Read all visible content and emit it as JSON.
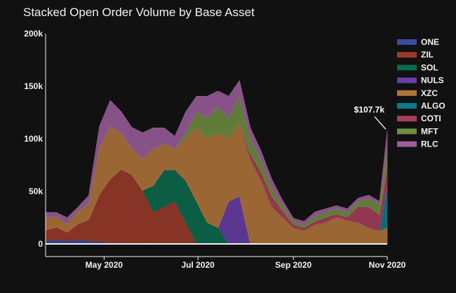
{
  "chart_data": {
    "type": "area",
    "stacked": true,
    "title": "Stacked Open Order Volume by Base Asset",
    "xlabel": "",
    "ylabel": "",
    "x_axis": {
      "type": "date",
      "range": [
        "2020-03-24",
        "2020-11-01"
      ],
      "tick_values": [
        "2020-05-01",
        "2020-07-01",
        "2020-09-01",
        "2020-11-01"
      ],
      "tick_labels": [
        "May 2020",
        "Jul 2020",
        "Sep 2020",
        "Nov 2020"
      ]
    },
    "y_axis": {
      "range": [
        -12000,
        200000
      ],
      "tick_values": [
        0,
        50000,
        100000,
        150000,
        200000
      ],
      "tick_labels": [
        "0",
        "50k",
        "100k",
        "150k",
        "200k"
      ]
    },
    "grid": false,
    "legend_position": "right",
    "x": [
      "2020-03-24",
      "2020-03-31",
      "2020-04-07",
      "2020-04-14",
      "2020-04-21",
      "2020-04-28",
      "2020-05-05",
      "2020-05-12",
      "2020-05-19",
      "2020-05-26",
      "2020-06-02",
      "2020-06-09",
      "2020-06-16",
      "2020-06-23",
      "2020-06-30",
      "2020-07-07",
      "2020-07-14",
      "2020-07-21",
      "2020-07-28",
      "2020-08-04",
      "2020-08-11",
      "2020-08-18",
      "2020-08-25",
      "2020-09-01",
      "2020-09-08",
      "2020-09-15",
      "2020-09-22",
      "2020-09-29",
      "2020-10-06",
      "2020-10-13",
      "2020-10-20",
      "2020-10-27",
      "2020-11-01"
    ],
    "series": [
      {
        "name": "ONE",
        "color": "#3b4c9c",
        "values": [
          3000,
          4000,
          3000,
          4000,
          3000,
          2000,
          1500,
          1000,
          1000,
          800,
          500,
          500,
          500,
          500,
          500,
          500,
          500,
          500,
          500,
          500,
          500,
          500,
          500,
          500,
          500,
          500,
          500,
          500,
          500,
          500,
          500,
          500,
          500
        ]
      },
      {
        "name": "ZIL",
        "color": "#9c3b2a",
        "values": [
          10000,
          12000,
          8000,
          15000,
          20000,
          45000,
          60000,
          70000,
          65000,
          50000,
          30000,
          35000,
          40000,
          20000,
          0,
          0,
          0,
          0,
          0,
          0,
          0,
          0,
          0,
          0,
          0,
          0,
          0,
          0,
          0,
          0,
          0,
          0,
          0
        ]
      },
      {
        "name": "SOL",
        "color": "#0a6b4d",
        "values": [
          0,
          0,
          0,
          0,
          0,
          0,
          0,
          0,
          0,
          0,
          25000,
          35000,
          30000,
          40000,
          40000,
          20000,
          15000,
          0,
          0,
          0,
          0,
          0,
          0,
          0,
          0,
          0,
          0,
          0,
          0,
          0,
          0,
          0,
          0
        ]
      },
      {
        "name": "NULS",
        "color": "#6a3ea8",
        "values": [
          0,
          0,
          0,
          0,
          0,
          0,
          0,
          0,
          0,
          0,
          0,
          0,
          0,
          0,
          0,
          0,
          0,
          40000,
          45000,
          0,
          0,
          0,
          0,
          0,
          0,
          0,
          0,
          0,
          0,
          0,
          0,
          0,
          0
        ]
      },
      {
        "name": "XZC",
        "color": "#b3753a",
        "values": [
          12000,
          10000,
          8000,
          12000,
          15000,
          45000,
          50000,
          35000,
          25000,
          30000,
          35000,
          25000,
          20000,
          40000,
          70000,
          80000,
          90000,
          60000,
          70000,
          80000,
          60000,
          35000,
          25000,
          15000,
          12000,
          18000,
          20000,
          25000,
          22000,
          20000,
          15000,
          12000,
          15000
        ]
      },
      {
        "name": "ALGO",
        "color": "#0c7b8c",
        "values": [
          0,
          0,
          0,
          0,
          0,
          0,
          0,
          0,
          0,
          0,
          0,
          0,
          0,
          0,
          0,
          0,
          0,
          0,
          0,
          0,
          0,
          0,
          0,
          0,
          0,
          0,
          0,
          0,
          0,
          0,
          0,
          0,
          38000
        ]
      },
      {
        "name": "COTI",
        "color": "#a83e5c",
        "values": [
          0,
          0,
          0,
          0,
          0,
          0,
          0,
          0,
          0,
          0,
          0,
          0,
          0,
          0,
          0,
          0,
          0,
          0,
          0,
          5000,
          8000,
          10000,
          6000,
          3000,
          3000,
          3000,
          5000,
          3000,
          3000,
          15000,
          20000,
          15000,
          20000
        ]
      },
      {
        "name": "MFT",
        "color": "#6f8e42",
        "values": [
          0,
          0,
          0,
          0,
          0,
          0,
          0,
          0,
          0,
          0,
          0,
          0,
          0,
          5000,
          15000,
          20000,
          25000,
          20000,
          25000,
          15000,
          12000,
          8000,
          5000,
          3000,
          3000,
          5000,
          5000,
          5000,
          5000,
          5000,
          8000,
          10000,
          17200
        ]
      },
      {
        "name": "RLC",
        "color": "#9c5e9c",
        "values": [
          5000,
          4000,
          6000,
          4000,
          8000,
          20000,
          25000,
          20000,
          20000,
          25000,
          20000,
          15000,
          12000,
          20000,
          15000,
          20000,
          15000,
          20000,
          15000,
          10000,
          8000,
          8000,
          5000,
          3000,
          3000,
          4000,
          3000,
          3000,
          3000,
          3000,
          3000,
          3000,
          17000
        ]
      }
    ],
    "annotation": {
      "label": "$107.7k",
      "x": "2020-11-01",
      "y": 107700
    }
  }
}
